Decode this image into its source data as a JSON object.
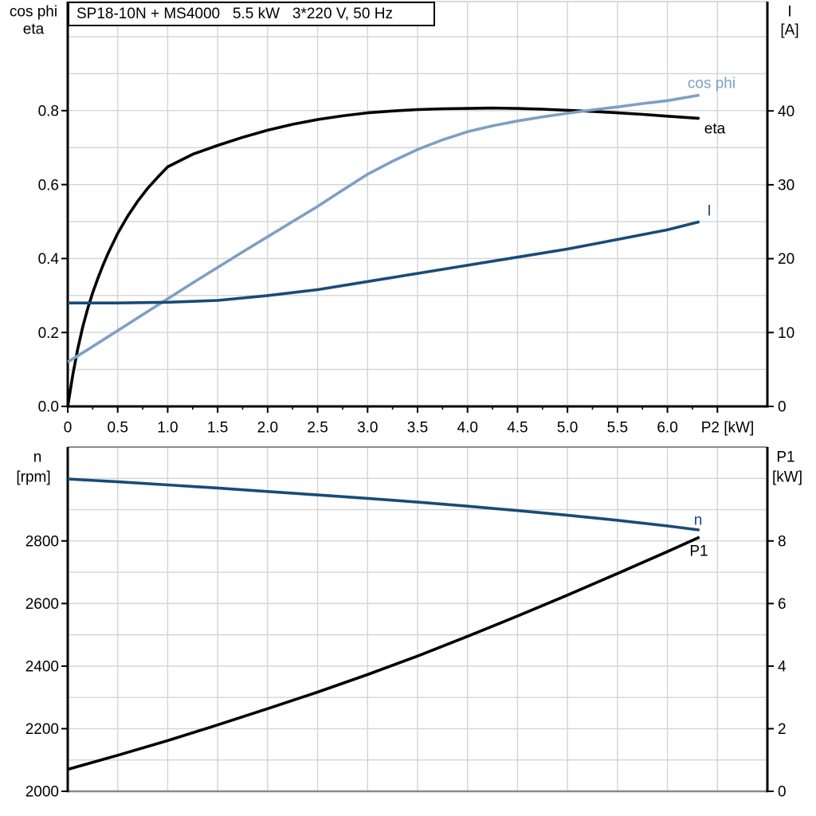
{
  "colors": {
    "black": "#000000",
    "dark_blue": "#1a4a78",
    "light_blue": "#7e9fc5",
    "grid": "#d4d4d4",
    "frame_gray": "#8a8a8a",
    "top_border_light": "#cfcfcf",
    "background": "#ffffff"
  },
  "chart_data": [
    {
      "id": "p2-performance",
      "type": "line",
      "title": "SP18-10N + MS4000   5.5 kW   3*220 V, 50 Hz",
      "x_axis": {
        "title": "P2 [kW]",
        "range": [
          0,
          7.0
        ],
        "grid_step": 0.5,
        "ticks": [
          {
            "v": 0,
            "label": "0"
          },
          {
            "v": 0.5,
            "label": "0.5"
          },
          {
            "v": 1,
            "label": "1.0"
          },
          {
            "v": 1.5,
            "label": "1.5"
          },
          {
            "v": 2,
            "label": "2.0"
          },
          {
            "v": 2.5,
            "label": "2.5"
          },
          {
            "v": 3,
            "label": "3.0"
          },
          {
            "v": 3.5,
            "label": "3.5"
          },
          {
            "v": 4,
            "label": "4.0"
          },
          {
            "v": 4.5,
            "label": "4.5"
          },
          {
            "v": 5,
            "label": "5.0"
          },
          {
            "v": 5.5,
            "label": "5.5"
          },
          {
            "v": 6,
            "label": "6.0"
          }
        ]
      },
      "left_axis": {
        "title_lines": [
          "cos phi",
          "eta"
        ],
        "range": [
          0,
          1.095
        ],
        "grid_step": 0.1,
        "ticks": [
          {
            "v": 0,
            "label": "0.0"
          },
          {
            "v": 0.2,
            "label": "0.2"
          },
          {
            "v": 0.4,
            "label": "0.4"
          },
          {
            "v": 0.6,
            "label": "0.6"
          },
          {
            "v": 0.8,
            "label": "0.8"
          }
        ]
      },
      "right_axis": {
        "title_lines": [
          "I",
          "[A]"
        ],
        "range": [
          0,
          54.8
        ],
        "ticks": [
          {
            "v": 0,
            "label": "0"
          },
          {
            "v": 10,
            "label": "10"
          },
          {
            "v": 20,
            "label": "20"
          },
          {
            "v": 30,
            "label": "30"
          },
          {
            "v": 40,
            "label": "40"
          }
        ]
      },
      "series": [
        {
          "name": "eta",
          "axis": "left",
          "color_key": "black",
          "points": [
            [
              0,
              0
            ],
            [
              0.05,
              0.085
            ],
            [
              0.1,
              0.155
            ],
            [
              0.15,
              0.215
            ],
            [
              0.2,
              0.265
            ],
            [
              0.25,
              0.308
            ],
            [
              0.3,
              0.345
            ],
            [
              0.35,
              0.38
            ],
            [
              0.4,
              0.412
            ],
            [
              0.5,
              0.468
            ],
            [
              0.6,
              0.515
            ],
            [
              0.7,
              0.555
            ],
            [
              0.8,
              0.59
            ],
            [
              0.9,
              0.62
            ],
            [
              1.0,
              0.648
            ],
            [
              1.25,
              0.682
            ],
            [
              1.5,
              0.706
            ],
            [
              1.75,
              0.728
            ],
            [
              2.0,
              0.747
            ],
            [
              2.25,
              0.763
            ],
            [
              2.5,
              0.776
            ],
            [
              2.75,
              0.786
            ],
            [
              3.0,
              0.794
            ],
            [
              3.25,
              0.799
            ],
            [
              3.5,
              0.803
            ],
            [
              3.75,
              0.805
            ],
            [
              4.0,
              0.806
            ],
            [
              4.25,
              0.807
            ],
            [
              4.5,
              0.806
            ],
            [
              4.75,
              0.804
            ],
            [
              5.0,
              0.801
            ],
            [
              5.25,
              0.798
            ],
            [
              5.5,
              0.794
            ],
            [
              5.75,
              0.79
            ],
            [
              6.0,
              0.785
            ],
            [
              6.32,
              0.779
            ]
          ]
        },
        {
          "name": "cos phi",
          "axis": "left",
          "color_key": "light_blue",
          "points": [
            [
              0,
              0.12
            ],
            [
              0.25,
              0.162
            ],
            [
              0.5,
              0.205
            ],
            [
              0.75,
              0.248
            ],
            [
              1.0,
              0.291
            ],
            [
              1.25,
              0.334
            ],
            [
              1.5,
              0.376
            ],
            [
              1.75,
              0.418
            ],
            [
              2.0,
              0.459
            ],
            [
              2.25,
              0.5
            ],
            [
              2.5,
              0.541
            ],
            [
              2.75,
              0.585
            ],
            [
              3.0,
              0.628
            ],
            [
              3.25,
              0.663
            ],
            [
              3.5,
              0.695
            ],
            [
              3.75,
              0.721
            ],
            [
              4.0,
              0.743
            ],
            [
              4.25,
              0.759
            ],
            [
              4.5,
              0.772
            ],
            [
              4.75,
              0.783
            ],
            [
              5.0,
              0.793
            ],
            [
              5.25,
              0.802
            ],
            [
              5.5,
              0.81
            ],
            [
              5.75,
              0.819
            ],
            [
              6.0,
              0.827
            ],
            [
              6.32,
              0.842
            ]
          ]
        },
        {
          "name": "I",
          "axis": "right",
          "color_key": "dark_blue",
          "points": [
            [
              0,
              14.0
            ],
            [
              0.5,
              14.0
            ],
            [
              1.0,
              14.1
            ],
            [
              1.5,
              14.35
            ],
            [
              2.0,
              15.0
            ],
            [
              2.5,
              15.8
            ],
            [
              3.0,
              16.9
            ],
            [
              3.5,
              18.0
            ],
            [
              4.0,
              19.1
            ],
            [
              4.5,
              20.2
            ],
            [
              5.0,
              21.3
            ],
            [
              5.5,
              22.6
            ],
            [
              6.0,
              23.9
            ],
            [
              6.32,
              25.0
            ]
          ]
        }
      ]
    },
    {
      "id": "speed-power",
      "type": "line",
      "x_axis": {
        "range": [
          0,
          7.0
        ],
        "grid_step": 0.5,
        "ticks": []
      },
      "left_axis": {
        "title_lines": [
          "n",
          "[rpm]"
        ],
        "range": [
          2000,
          3100
        ],
        "grid_step": 100,
        "ticks": [
          {
            "v": 2000,
            "label": "2000"
          },
          {
            "v": 2200,
            "label": "2200"
          },
          {
            "v": 2400,
            "label": "2400"
          },
          {
            "v": 2600,
            "label": "2600"
          },
          {
            "v": 2800,
            "label": "2800"
          }
        ]
      },
      "right_axis": {
        "title_lines": [
          "P1",
          "[kW]"
        ],
        "range": [
          0,
          11.0
        ],
        "ticks": [
          {
            "v": 0,
            "label": "0"
          },
          {
            "v": 2,
            "label": "2"
          },
          {
            "v": 4,
            "label": "4"
          },
          {
            "v": 6,
            "label": "6"
          },
          {
            "v": 8,
            "label": "8"
          }
        ]
      },
      "series": [
        {
          "name": "n",
          "axis": "left",
          "color_key": "dark_blue",
          "points": [
            [
              0,
              2998
            ],
            [
              0.5,
              2989
            ],
            [
              1.0,
              2979
            ],
            [
              1.5,
              2969
            ],
            [
              2.0,
              2958
            ],
            [
              2.5,
              2947
            ],
            [
              3.0,
              2936
            ],
            [
              3.5,
              2924
            ],
            [
              4.0,
              2911
            ],
            [
              4.5,
              2897
            ],
            [
              5.0,
              2882
            ],
            [
              5.5,
              2866
            ],
            [
              6.0,
              2848
            ],
            [
              6.32,
              2835
            ]
          ]
        },
        {
          "name": "P1",
          "axis": "right",
          "color_key": "black",
          "points": [
            [
              0,
              0.7
            ],
            [
              0.5,
              1.15
            ],
            [
              1.0,
              1.62
            ],
            [
              1.5,
              2.12
            ],
            [
              2.0,
              2.64
            ],
            [
              2.5,
              3.17
            ],
            [
              3.0,
              3.73
            ],
            [
              3.5,
              4.32
            ],
            [
              4.0,
              4.95
            ],
            [
              4.5,
              5.6
            ],
            [
              5.0,
              6.27
            ],
            [
              5.5,
              6.96
            ],
            [
              6.0,
              7.66
            ],
            [
              6.32,
              8.12
            ]
          ]
        }
      ]
    }
  ]
}
